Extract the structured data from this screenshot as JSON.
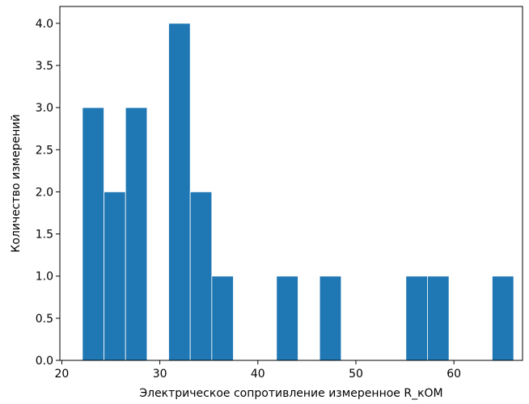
{
  "chart_data": {
    "type": "bar",
    "title": "",
    "xlabel": "Электрическое сопротивление измеренное R_кОМ",
    "ylabel": "Количество измерений",
    "xlim": [
      19.8,
      67.0
    ],
    "ylim": [
      0,
      4.2
    ],
    "xticks": [
      20,
      30,
      40,
      50,
      60
    ],
    "yticks": [
      0.0,
      0.5,
      1.0,
      1.5,
      2.0,
      2.5,
      3.0,
      3.5,
      4.0
    ],
    "xtick_labels": [
      "20",
      "30",
      "40",
      "50",
      "60"
    ],
    "ytick_labels": [
      "0.0",
      "0.5",
      "1.0",
      "1.5",
      "2.0",
      "2.5",
      "3.0",
      "3.5",
      "4.0"
    ],
    "bin_edges": [
      22.1,
      24.3,
      26.5,
      28.7,
      30.9,
      33.1,
      35.3,
      37.5,
      39.7,
      41.9,
      44.1,
      46.3,
      48.5,
      50.7,
      52.9,
      55.1,
      57.3,
      59.5,
      61.7,
      63.9,
      66.1
    ],
    "values": [
      3,
      2,
      3,
      0,
      4,
      2,
      1,
      0,
      0,
      1,
      0,
      1,
      0,
      0,
      0,
      1,
      1,
      0,
      0,
      1
    ],
    "bar_color": "#1f77b4",
    "edge_color": "#ffffff",
    "grid": false
  }
}
